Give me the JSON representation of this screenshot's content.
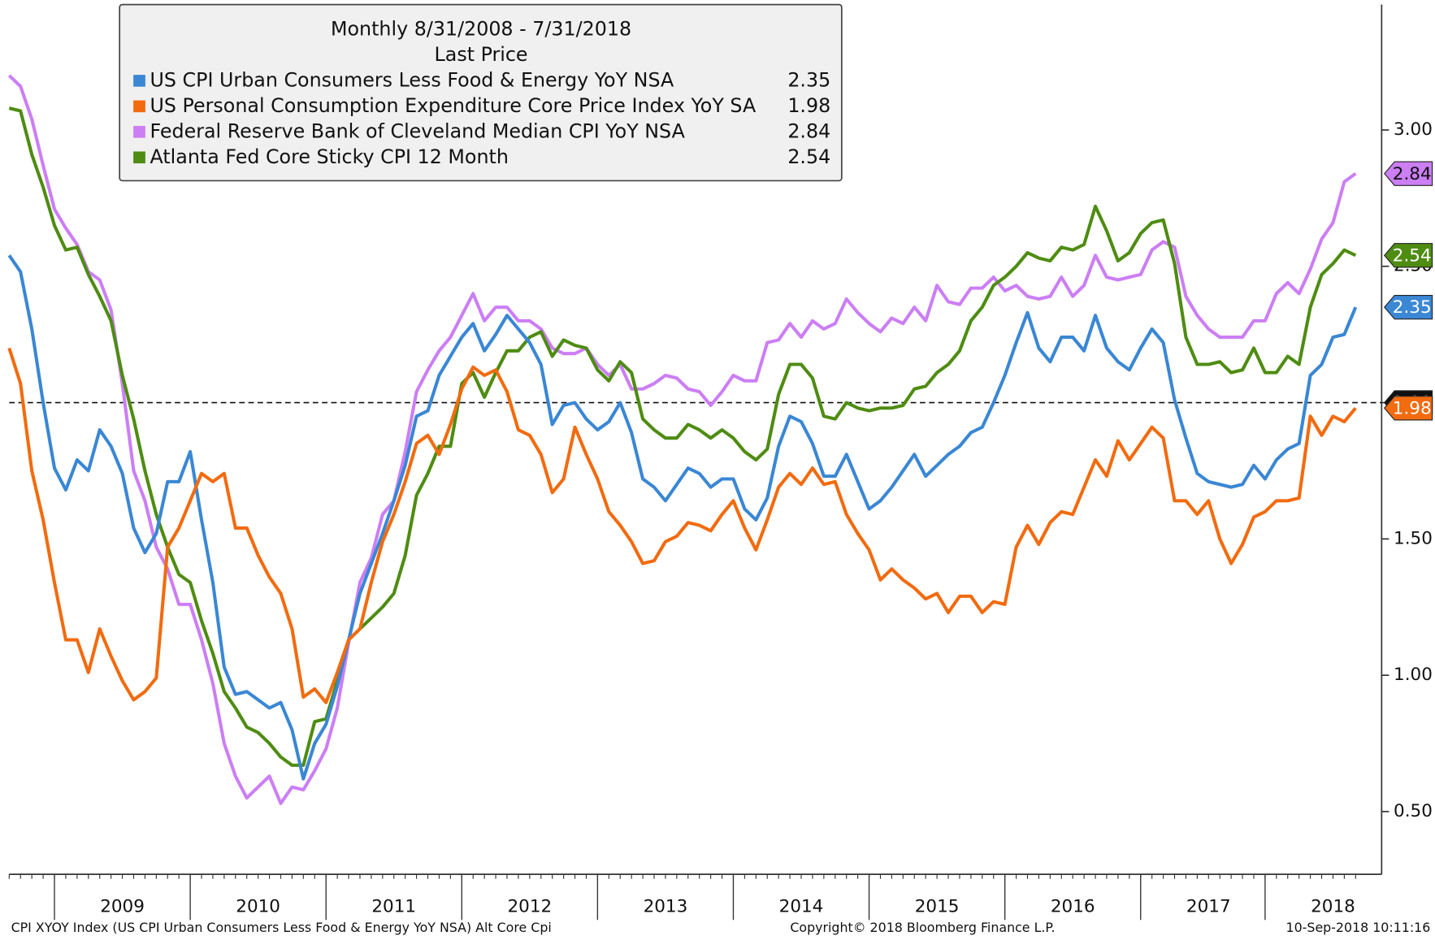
{
  "chart_data": {
    "type": "line",
    "legend_title": "Monthly 8/31/2008 - 7/31/2018",
    "legend_subtitle": "Last Price",
    "categories": [
      null,
      null,
      null,
      null,
      null,
      null,
      null,
      null,
      null,
      null,
      "2009",
      null,
      null,
      null,
      null,
      null,
      null,
      null,
      null,
      null,
      null,
      null,
      "2010",
      null,
      null,
      null,
      null,
      null,
      null,
      null,
      null,
      null,
      null,
      null,
      "2011",
      null,
      null,
      null,
      null,
      null,
      null,
      null,
      null,
      null,
      null,
      null,
      "2012",
      null,
      null,
      null,
      null,
      null,
      null,
      null,
      null,
      null,
      null,
      null,
      "2013",
      null,
      null,
      null,
      null,
      null,
      null,
      null,
      null,
      null,
      null,
      null,
      "2014",
      null,
      null,
      null,
      null,
      null,
      null,
      null,
      null,
      null,
      null,
      null,
      "2015",
      null,
      null,
      null,
      null,
      null,
      null,
      null,
      null,
      null,
      null,
      null,
      "2016",
      null,
      null,
      null,
      null,
      null,
      null,
      null,
      null,
      null,
      null,
      null,
      "2017",
      null,
      null,
      null,
      null,
      null,
      null,
      null,
      null,
      null,
      null,
      "2018",
      null,
      null
    ],
    "series": [
      {
        "name": "US CPI Urban Consumers Less Food & Energy YoY NSA",
        "color": "#3a87d4",
        "values": [
          2.54,
          2.48,
          2.27,
          2.0,
          1.76,
          1.68,
          1.79,
          1.75,
          1.9,
          1.84,
          1.74,
          1.54,
          1.45,
          1.52,
          1.71,
          1.71,
          1.82,
          1.57,
          1.34,
          1.03,
          0.93,
          0.94,
          0.91,
          0.88,
          0.9,
          0.8,
          0.62,
          0.75,
          0.82,
          0.96,
          1.13,
          1.3,
          1.41,
          1.52,
          1.64,
          1.77,
          1.95,
          1.97,
          2.1,
          2.17,
          2.24,
          2.29,
          2.19,
          2.25,
          2.32,
          2.27,
          2.22,
          2.14,
          1.92,
          1.99,
          2.0,
          1.94,
          1.9,
          1.93,
          2.0,
          1.89,
          1.72,
          1.69,
          1.64,
          1.7,
          1.76,
          1.74,
          1.69,
          1.72,
          1.72,
          1.61,
          1.57,
          1.65,
          1.84,
          1.95,
          1.93,
          1.85,
          1.73,
          1.73,
          1.81,
          1.71,
          1.61,
          1.64,
          1.69,
          1.75,
          1.81,
          1.73,
          1.77,
          1.81,
          1.84,
          1.89,
          1.91,
          2.0,
          2.1,
          2.22,
          2.33,
          2.2,
          2.15,
          2.24,
          2.24,
          2.19,
          2.32,
          2.2,
          2.15,
          2.12,
          2.2,
          2.27,
          2.22,
          2.01,
          1.87,
          1.74,
          1.71,
          1.7,
          1.69,
          1.7,
          1.77,
          1.72,
          1.79,
          1.83,
          1.85,
          2.1,
          2.14,
          2.24,
          2.25,
          2.35
        ]
      },
      {
        "name": "US Personal Consumption Expenditure Core Price Index YoY SA",
        "color": "#f26b0f",
        "values": [
          2.2,
          2.07,
          1.75,
          1.57,
          1.34,
          1.13,
          1.13,
          1.01,
          1.17,
          1.07,
          0.98,
          0.91,
          0.94,
          0.99,
          1.47,
          1.54,
          1.64,
          1.74,
          1.71,
          1.74,
          1.54,
          1.54,
          1.44,
          1.36,
          1.3,
          1.17,
          0.92,
          0.95,
          0.9,
          1.01,
          1.13,
          1.17,
          1.34,
          1.49,
          1.59,
          1.71,
          1.85,
          1.88,
          1.81,
          1.92,
          2.05,
          2.13,
          2.1,
          2.12,
          2.04,
          1.9,
          1.88,
          1.81,
          1.67,
          1.72,
          1.91,
          1.81,
          1.72,
          1.6,
          1.55,
          1.49,
          1.41,
          1.42,
          1.49,
          1.51,
          1.56,
          1.55,
          1.53,
          1.59,
          1.64,
          1.54,
          1.46,
          1.57,
          1.69,
          1.74,
          1.7,
          1.76,
          1.7,
          1.71,
          1.59,
          1.52,
          1.46,
          1.35,
          1.39,
          1.35,
          1.32,
          1.28,
          1.3,
          1.23,
          1.29,
          1.29,
          1.23,
          1.27,
          1.26,
          1.47,
          1.55,
          1.48,
          1.56,
          1.6,
          1.59,
          1.69,
          1.79,
          1.73,
          1.86,
          1.79,
          1.85,
          1.91,
          1.87,
          1.64,
          1.64,
          1.59,
          1.64,
          1.5,
          1.41,
          1.48,
          1.58,
          1.6,
          1.64,
          1.64,
          1.65,
          1.95,
          1.88,
          1.95,
          1.93,
          1.98
        ]
      },
      {
        "name": "Federal Reserve Bank of Cleveland Median CPI YoY NSA",
        "color": "#cc7ef5",
        "values": [
          3.2,
          3.16,
          3.04,
          2.87,
          2.71,
          2.64,
          2.58,
          2.48,
          2.45,
          2.34,
          2.07,
          1.75,
          1.64,
          1.47,
          1.39,
          1.26,
          1.26,
          1.13,
          0.97,
          0.75,
          0.63,
          0.55,
          0.59,
          0.63,
          0.53,
          0.59,
          0.58,
          0.65,
          0.73,
          0.88,
          1.12,
          1.34,
          1.43,
          1.59,
          1.64,
          1.82,
          2.04,
          2.12,
          2.19,
          2.24,
          2.32,
          2.4,
          2.3,
          2.35,
          2.35,
          2.3,
          2.3,
          2.27,
          2.2,
          2.18,
          2.18,
          2.2,
          2.14,
          2.1,
          2.14,
          2.05,
          2.05,
          2.07,
          2.1,
          2.09,
          2.05,
          2.04,
          1.99,
          2.04,
          2.1,
          2.08,
          2.08,
          2.22,
          2.23,
          2.29,
          2.24,
          2.3,
          2.27,
          2.29,
          2.38,
          2.33,
          2.29,
          2.26,
          2.31,
          2.29,
          2.35,
          2.3,
          2.43,
          2.37,
          2.36,
          2.42,
          2.42,
          2.46,
          2.41,
          2.43,
          2.39,
          2.38,
          2.39,
          2.46,
          2.39,
          2.43,
          2.54,
          2.46,
          2.45,
          2.46,
          2.47,
          2.56,
          2.59,
          2.57,
          2.39,
          2.32,
          2.27,
          2.24,
          2.24,
          2.24,
          2.3,
          2.3,
          2.4,
          2.44,
          2.4,
          2.49,
          2.6,
          2.66,
          2.81,
          2.84
        ]
      },
      {
        "name": "Atlanta Fed Core Sticky CPI 12 Month",
        "color": "#4e8c12",
        "values": [
          3.08,
          3.07,
          2.91,
          2.79,
          2.65,
          2.56,
          2.57,
          2.47,
          2.39,
          2.3,
          2.1,
          1.94,
          1.75,
          1.59,
          1.47,
          1.37,
          1.34,
          1.2,
          1.08,
          0.94,
          0.88,
          0.81,
          0.79,
          0.75,
          0.7,
          0.67,
          0.67,
          0.83,
          0.84,
          0.98,
          1.13,
          1.17,
          1.21,
          1.25,
          1.3,
          1.44,
          1.66,
          1.74,
          1.84,
          1.84,
          2.07,
          2.11,
          2.02,
          2.11,
          2.19,
          2.19,
          2.24,
          2.26,
          2.17,
          2.23,
          2.21,
          2.2,
          2.12,
          2.08,
          2.15,
          2.11,
          1.94,
          1.9,
          1.87,
          1.87,
          1.92,
          1.9,
          1.87,
          1.9,
          1.87,
          1.82,
          1.79,
          1.83,
          2.03,
          2.14,
          2.14,
          2.09,
          1.95,
          1.94,
          2.0,
          1.98,
          1.97,
          1.98,
          1.98,
          1.99,
          2.05,
          2.06,
          2.11,
          2.14,
          2.19,
          2.3,
          2.35,
          2.43,
          2.46,
          2.5,
          2.55,
          2.53,
          2.52,
          2.57,
          2.56,
          2.58,
          2.72,
          2.63,
          2.52,
          2.55,
          2.62,
          2.66,
          2.67,
          2.51,
          2.24,
          2.14,
          2.14,
          2.15,
          2.11,
          2.12,
          2.2,
          2.11,
          2.11,
          2.17,
          2.14,
          2.35,
          2.47,
          2.51,
          2.56,
          2.54
        ]
      }
    ],
    "reference_line": {
      "value": 2,
      "label": "2.00"
    },
    "ylim": [
      0.27,
      3.46
    ],
    "yticks": [
      {
        "value": 0.5,
        "label": "0.50"
      },
      {
        "value": 1,
        "label": "1.00"
      },
      {
        "value": 1.5,
        "label": "1.50"
      },
      {
        "value": 2,
        "label": "2.00"
      },
      {
        "value": 2.5,
        "label": "2.50"
      },
      {
        "value": 3,
        "label": "3.00"
      }
    ],
    "grid": false,
    "legend": "top-left"
  },
  "footer": {
    "left": "CPI XYOY Index (US CPI Urban Consumers Less Food & Energy YoY NSA) Alt Core Cpi",
    "center": "Copyright© 2018 Bloomberg Finance L.P.",
    "right": "10-Sep-2018 10:11:16"
  }
}
